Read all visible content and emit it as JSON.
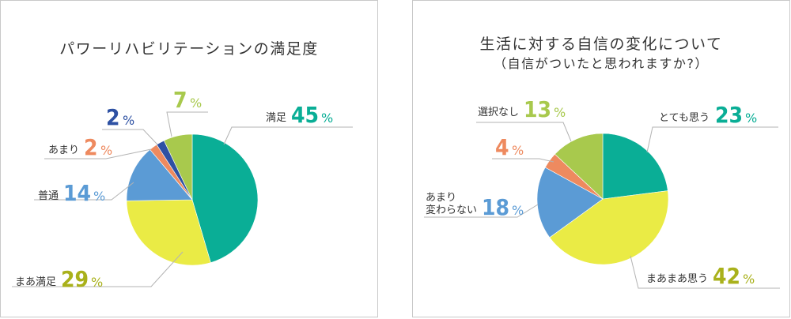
{
  "colors": {
    "teal": "#0aae96",
    "yellow": "#eaeb45",
    "blue": "#5b9bd5",
    "orange": "#ee8a5f",
    "navy": "#2e51a3",
    "lime": "#a8c94d",
    "leader": "#b3b3b3",
    "text": "#333333"
  },
  "chart_data": [
    {
      "type": "pie",
      "title": "パワーリハビリテーションの満足度",
      "unit": "%",
      "slices": [
        {
          "label": "満足",
          "value": 45,
          "color": "#0aae96",
          "value_color": "#0aae96"
        },
        {
          "label": "まあ満足",
          "value": 29,
          "color": "#eaeb45",
          "value_color": "#a9b11b"
        },
        {
          "label": "普通",
          "value": 14,
          "color": "#5b9bd5",
          "value_color": "#5b9bd5"
        },
        {
          "label": "あまり",
          "value": 2,
          "color": "#ee8a5f",
          "value_color": "#ee8a5f"
        },
        {
          "label": "",
          "value": 2,
          "color": "#2e51a3",
          "value_color": "#2e51a3"
        },
        {
          "label": "",
          "value": 7,
          "color": "#a8c94d",
          "value_color": "#a8c94d"
        }
      ]
    },
    {
      "type": "pie",
      "title": "生活に対する自信の変化について",
      "subtitle": "（自信がついたと思われますか?）",
      "unit": "%",
      "slices": [
        {
          "label": "とても思う",
          "value": 23,
          "color": "#0aae96",
          "value_color": "#0aae96"
        },
        {
          "label": "まあまあ思う",
          "value": 42,
          "color": "#eaeb45",
          "value_color": "#a9b11b"
        },
        {
          "label": "あまり\n変わらない",
          "value": 18,
          "color": "#5b9bd5",
          "value_color": "#5b9bd5"
        },
        {
          "label": "",
          "value": 4,
          "color": "#ee8a5f",
          "value_color": "#ee8a5f"
        },
        {
          "label": "選択なし",
          "value": 13,
          "color": "#a8c94d",
          "value_color": "#a8c94d"
        }
      ]
    }
  ]
}
